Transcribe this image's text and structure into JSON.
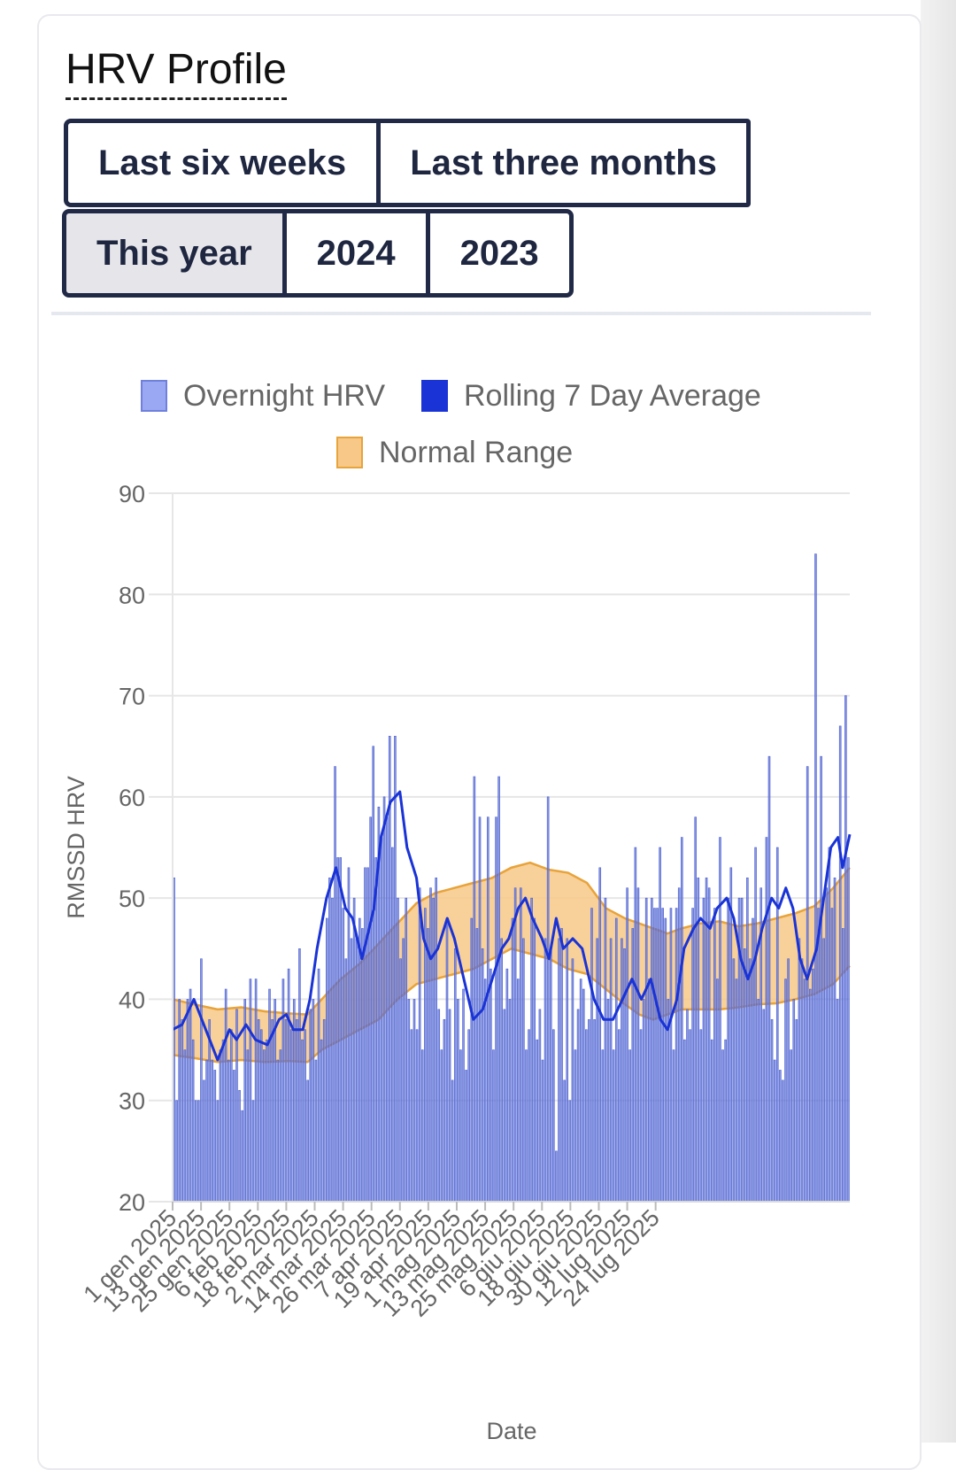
{
  "card": {
    "title": "HRV Profile"
  },
  "ranges": {
    "row1": [
      {
        "label": "Last six weeks",
        "active": false
      },
      {
        "label": "Last three months",
        "active": false
      }
    ],
    "row2": [
      {
        "label": "This year",
        "active": true
      },
      {
        "label": "2024",
        "active": false
      },
      {
        "label": "2023",
        "active": false
      }
    ]
  },
  "colors": {
    "bar_fill": "#6f80dd",
    "bar_stroke": "#4b5fcf",
    "line": "#1a33d6",
    "range_fill": "#f7c887",
    "range_stroke": "#e8a33a",
    "grid": "#e6e6e6"
  },
  "chart_data": {
    "type": "bar",
    "legend": [
      "Overnight HRV",
      "Rolling 7 Day Average",
      "Normal Range"
    ],
    "legend_placement": "top-center",
    "xlabel": "Date",
    "ylabel": "RMSSD HRV",
    "ylim": [
      20,
      90
    ],
    "yticks": [
      20,
      30,
      40,
      50,
      60,
      70,
      80,
      90
    ],
    "grid": true,
    "x_range": [
      "1 gen 2025",
      "29 lug 2025"
    ],
    "xtick_labels": [
      "1 gen 2025",
      "13 gen 2025",
      "25 gen 2025",
      "6 feb 2025",
      "18 feb 2025",
      "2 mar 2025",
      "14 mar 2025",
      "26 mar 2025",
      "7 apr 2025",
      "19 apr 2025",
      "1 mag 2025",
      "13 mag 2025",
      "25 mag 2025",
      "6 giu 2025",
      "18 giu 2025",
      "30 giu 2025",
      "12 lug 2025",
      "24 lug 2025"
    ],
    "series": [
      {
        "name": "Overnight HRV",
        "type": "bar",
        "values": [
          52,
          30,
          40,
          38,
          35,
          40,
          41,
          36,
          30,
          30,
          44,
          32,
          34,
          38,
          34,
          33,
          30,
          35,
          36,
          41,
          34,
          37,
          33,
          39,
          31,
          29,
          40,
          35,
          42,
          30,
          42,
          38,
          37,
          35,
          36,
          41,
          38,
          40,
          34,
          35,
          42,
          38,
          43,
          37,
          40,
          38,
          45,
          36,
          37,
          32,
          39,
          40,
          34,
          43,
          36,
          38,
          48,
          52,
          50,
          63,
          54,
          54,
          49,
          44,
          53,
          46,
          50,
          46,
          48,
          47,
          53,
          53,
          58,
          65,
          54,
          59,
          56,
          60,
          58,
          66,
          55,
          66,
          50,
          44,
          46,
          50,
          40,
          37,
          40,
          37,
          51,
          35,
          49,
          47,
          51,
          50,
          52,
          39,
          35,
          38,
          48,
          39,
          32,
          45,
          40,
          35,
          41,
          33,
          37,
          48,
          62,
          47,
          58,
          45,
          42,
          58,
          43,
          35,
          58,
          62,
          46,
          39,
          43,
          40,
          48,
          51,
          42,
          51,
          46,
          35,
          37,
          50,
          48,
          36,
          39,
          34,
          46,
          60,
          45,
          37,
          25,
          46,
          47,
          32,
          46,
          30,
          44,
          35,
          39,
          42,
          41,
          37,
          38,
          49,
          38,
          46,
          53,
          35,
          50,
          40,
          46,
          35,
          48,
          37,
          46,
          45,
          51,
          35,
          47,
          55,
          51,
          37,
          40,
          50,
          42,
          50,
          49,
          49,
          55,
          49,
          48,
          40,
          49,
          35,
          49,
          51,
          56,
          36,
          39,
          37,
          49,
          58,
          52,
          37,
          50,
          52,
          51,
          36,
          49,
          42,
          56,
          35,
          36,
          50,
          53,
          44,
          42,
          50,
          50,
          45,
          52,
          44,
          48,
          55,
          40,
          51,
          39,
          56,
          64,
          38,
          34,
          55,
          33,
          32,
          42,
          44,
          35,
          40,
          38,
          46,
          44,
          42,
          63,
          41,
          43,
          84,
          49,
          64,
          46,
          51,
          55,
          49,
          52,
          40,
          67,
          47,
          70,
          54
        ],
        "range": [
          1,
          209
        ]
      },
      {
        "name": "Rolling 7 Day Average",
        "type": "line",
        "points": [
          [
            1,
            37
          ],
          [
            5,
            37.5
          ],
          [
            10,
            40
          ],
          [
            15,
            37
          ],
          [
            20,
            34
          ],
          [
            25,
            37
          ],
          [
            28,
            36
          ],
          [
            32,
            37.5
          ],
          [
            36,
            36
          ],
          [
            41,
            35.5
          ],
          [
            46,
            38
          ],
          [
            49,
            38.5
          ],
          [
            52,
            37
          ],
          [
            56,
            37
          ],
          [
            59,
            40
          ],
          [
            62,
            45
          ],
          [
            66,
            50
          ],
          [
            70,
            53
          ],
          [
            74,
            49
          ],
          [
            77,
            48
          ],
          [
            81,
            44
          ],
          [
            86,
            49
          ],
          [
            89,
            56
          ],
          [
            93,
            59.5
          ],
          [
            97,
            60.5
          ],
          [
            100,
            55
          ],
          [
            104,
            52
          ],
          [
            107,
            46
          ],
          [
            110,
            44
          ],
          [
            113,
            45
          ],
          [
            117,
            48
          ],
          [
            120,
            46
          ],
          [
            124,
            42
          ],
          [
            128,
            38
          ],
          [
            132,
            39
          ],
          [
            136,
            42
          ],
          [
            140,
            45
          ],
          [
            143,
            46
          ],
          [
            147,
            49
          ],
          [
            150,
            50
          ],
          [
            153,
            48
          ],
          [
            157,
            46
          ],
          [
            160,
            44
          ],
          [
            163,
            48
          ],
          [
            166,
            45
          ],
          [
            170,
            46
          ],
          [
            174,
            45
          ],
          [
            179,
            40
          ],
          [
            183,
            38
          ],
          [
            187,
            38
          ],
          [
            191,
            40
          ],
          [
            195,
            42
          ],
          [
            199,
            40
          ],
          [
            203,
            42
          ],
          [
            207,
            38
          ],
          [
            210,
            37
          ],
          [
            214,
            40
          ],
          [
            217,
            45
          ],
          [
            221,
            47
          ],
          [
            224,
            48
          ],
          [
            228,
            47
          ],
          [
            231,
            49
          ],
          [
            235,
            50
          ],
          [
            238,
            48
          ],
          [
            241,
            44
          ],
          [
            244,
            42
          ],
          [
            247,
            44
          ],
          [
            250,
            47
          ],
          [
            254,
            50
          ],
          [
            257,
            49
          ],
          [
            260,
            51
          ],
          [
            263,
            49
          ],
          [
            266,
            44
          ],
          [
            269,
            42
          ],
          [
            273,
            45
          ],
          [
            276,
            50
          ],
          [
            279,
            55
          ],
          [
            282,
            56
          ],
          [
            284,
            53
          ],
          [
            287,
            56.3
          ]
        ]
      },
      {
        "name": "Normal Range",
        "type": "area",
        "lower": [
          [
            1,
            34.5
          ],
          [
            10,
            34.2
          ],
          [
            20,
            33.8
          ],
          [
            30,
            34
          ],
          [
            40,
            33.8
          ],
          [
            50,
            33.9
          ],
          [
            58,
            33.8
          ],
          [
            64,
            35
          ],
          [
            72,
            36
          ],
          [
            80,
            37
          ],
          [
            88,
            38
          ],
          [
            96,
            40
          ],
          [
            104,
            41.5
          ],
          [
            112,
            42
          ],
          [
            120,
            42.5
          ],
          [
            128,
            43
          ],
          [
            136,
            44
          ],
          [
            144,
            45
          ],
          [
            152,
            44.5
          ],
          [
            160,
            44
          ],
          [
            168,
            43
          ],
          [
            176,
            42.5
          ],
          [
            184,
            41
          ],
          [
            192,
            39.5
          ],
          [
            198,
            38.5
          ],
          [
            204,
            38
          ],
          [
            210,
            38.5
          ],
          [
            216,
            39
          ],
          [
            224,
            39
          ],
          [
            232,
            39
          ],
          [
            240,
            39.2
          ],
          [
            248,
            39.5
          ],
          [
            256,
            39.6
          ],
          [
            264,
            40
          ],
          [
            272,
            40.5
          ],
          [
            280,
            41.5
          ],
          [
            287,
            43.3
          ]
        ],
        "upper": [
          [
            1,
            40
          ],
          [
            10,
            39.5
          ],
          [
            20,
            39
          ],
          [
            30,
            39.2
          ],
          [
            40,
            38.8
          ],
          [
            50,
            38.6
          ],
          [
            58,
            38.5
          ],
          [
            64,
            40
          ],
          [
            72,
            42
          ],
          [
            80,
            43.5
          ],
          [
            88,
            45.5
          ],
          [
            96,
            47.5
          ],
          [
            104,
            49.5
          ],
          [
            112,
            50.5
          ],
          [
            120,
            51
          ],
          [
            128,
            51.5
          ],
          [
            136,
            52
          ],
          [
            144,
            53
          ],
          [
            152,
            53.5
          ],
          [
            160,
            52.8
          ],
          [
            168,
            52.5
          ],
          [
            176,
            51.5
          ],
          [
            184,
            49
          ],
          [
            192,
            48
          ],
          [
            198,
            47.5
          ],
          [
            204,
            47
          ],
          [
            210,
            46.5
          ],
          [
            216,
            47
          ],
          [
            224,
            47.5
          ],
          [
            232,
            47.7
          ],
          [
            240,
            47.2
          ],
          [
            248,
            47.5
          ],
          [
            256,
            48
          ],
          [
            264,
            48.5
          ],
          [
            272,
            49.2
          ],
          [
            280,
            51
          ],
          [
            287,
            53
          ]
        ]
      }
    ]
  }
}
